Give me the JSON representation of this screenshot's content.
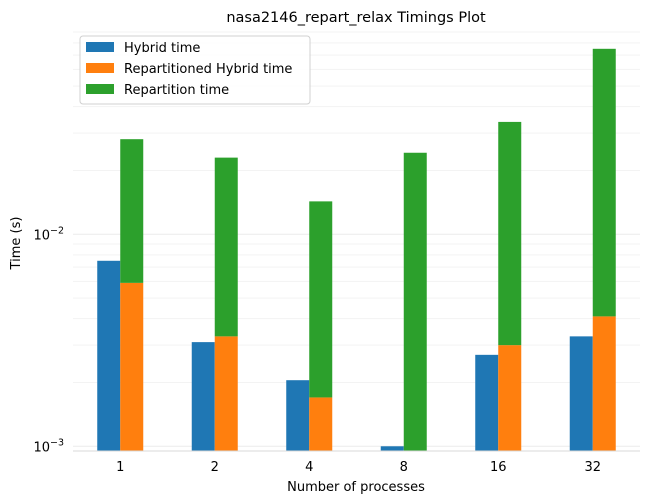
{
  "chart_data": {
    "type": "bar",
    "title": "nasa2146_repart_relax Timings Plot",
    "xlabel": "Number of processes",
    "ylabel": "Time (s)",
    "yscale": "log",
    "ylim": [
      0.00095,
      0.092
    ],
    "yticks": [
      {
        "value": 0.001,
        "base": "10",
        "exp": "−3"
      },
      {
        "value": 0.01,
        "base": "10",
        "exp": "−2"
      }
    ],
    "grid": "horizontal, faint",
    "legend_position": "top-left",
    "categories": [
      "1",
      "2",
      "4",
      "8",
      "16",
      "32"
    ],
    "series": [
      {
        "name": "Hybrid time",
        "color": "#1f77b4",
        "offset": "left",
        "stack_base": null,
        "values": [
          0.0075,
          0.0031,
          0.00205,
          0.001,
          0.0027,
          0.0033
        ]
      },
      {
        "name": "Repartitioned Hybrid time",
        "color": "#ff7f0e",
        "offset": "right",
        "stack_base": null,
        "values": [
          0.0059,
          0.0033,
          0.0017,
          null,
          0.003,
          0.0041
        ]
      },
      {
        "name": "Repartition time",
        "color": "#2ca02c",
        "offset": "right",
        "stack_base": "Repartitioned Hybrid time",
        "values": [
          0.0222,
          0.0197,
          0.0126,
          0.0233,
          0.0309,
          0.0709
        ]
      }
    ]
  }
}
